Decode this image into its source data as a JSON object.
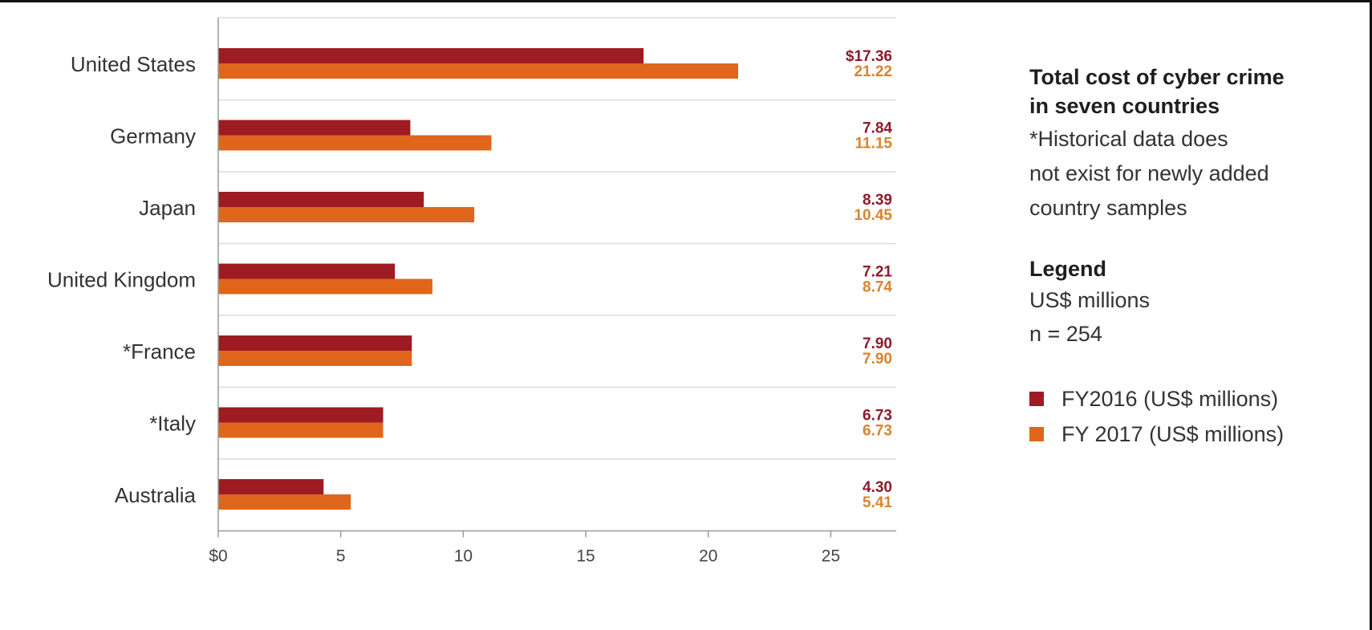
{
  "chart_data": {
    "type": "bar",
    "orientation": "horizontal",
    "categories": [
      "United States",
      "Germany",
      "Japan",
      "United Kingdom",
      "*France",
      "*Italy",
      "Australia"
    ],
    "series": [
      {
        "name": "FY2016 (US$ millions)",
        "color": "#9e1b24",
        "values": [
          17.36,
          7.84,
          8.39,
          7.21,
          7.9,
          6.73,
          4.3
        ],
        "labels": [
          "$17.36",
          "7.84",
          "8.39",
          "7.21",
          "7.90",
          "6.73",
          "4.30"
        ]
      },
      {
        "name": "FY 2017 (US$ millions)",
        "color": "#e0661b",
        "values": [
          21.22,
          11.15,
          10.45,
          8.74,
          7.9,
          6.73,
          5.41
        ],
        "labels": [
          "21.22",
          "11.15",
          "10.45",
          "8.74",
          "7.90",
          "6.73",
          "5.41"
        ]
      }
    ],
    "xticks": [
      "$0",
      "5",
      "10",
      "15",
      "20",
      "25"
    ],
    "xlim": [
      0,
      27.5
    ],
    "grid": "horizontal separators between categories",
    "legend": "right"
  },
  "side": {
    "title_line1": "Total cost of cyber crime",
    "title_line2": "in seven countries",
    "note_line1": "*Historical data does",
    "note_line2": "not exist for newly added",
    "note_line3": "country samples",
    "legend_heading": "Legend",
    "legend_unit": "US$ millions",
    "legend_n": "n = 254"
  },
  "colors": {
    "fy2016": "#9e1b24",
    "fy2017": "#e0661b",
    "fy2016_label": "#8e1a2c",
    "fy2017_label": "#d9832e",
    "gridline": "#dcdcdc",
    "axis": "#9a9a9a"
  }
}
